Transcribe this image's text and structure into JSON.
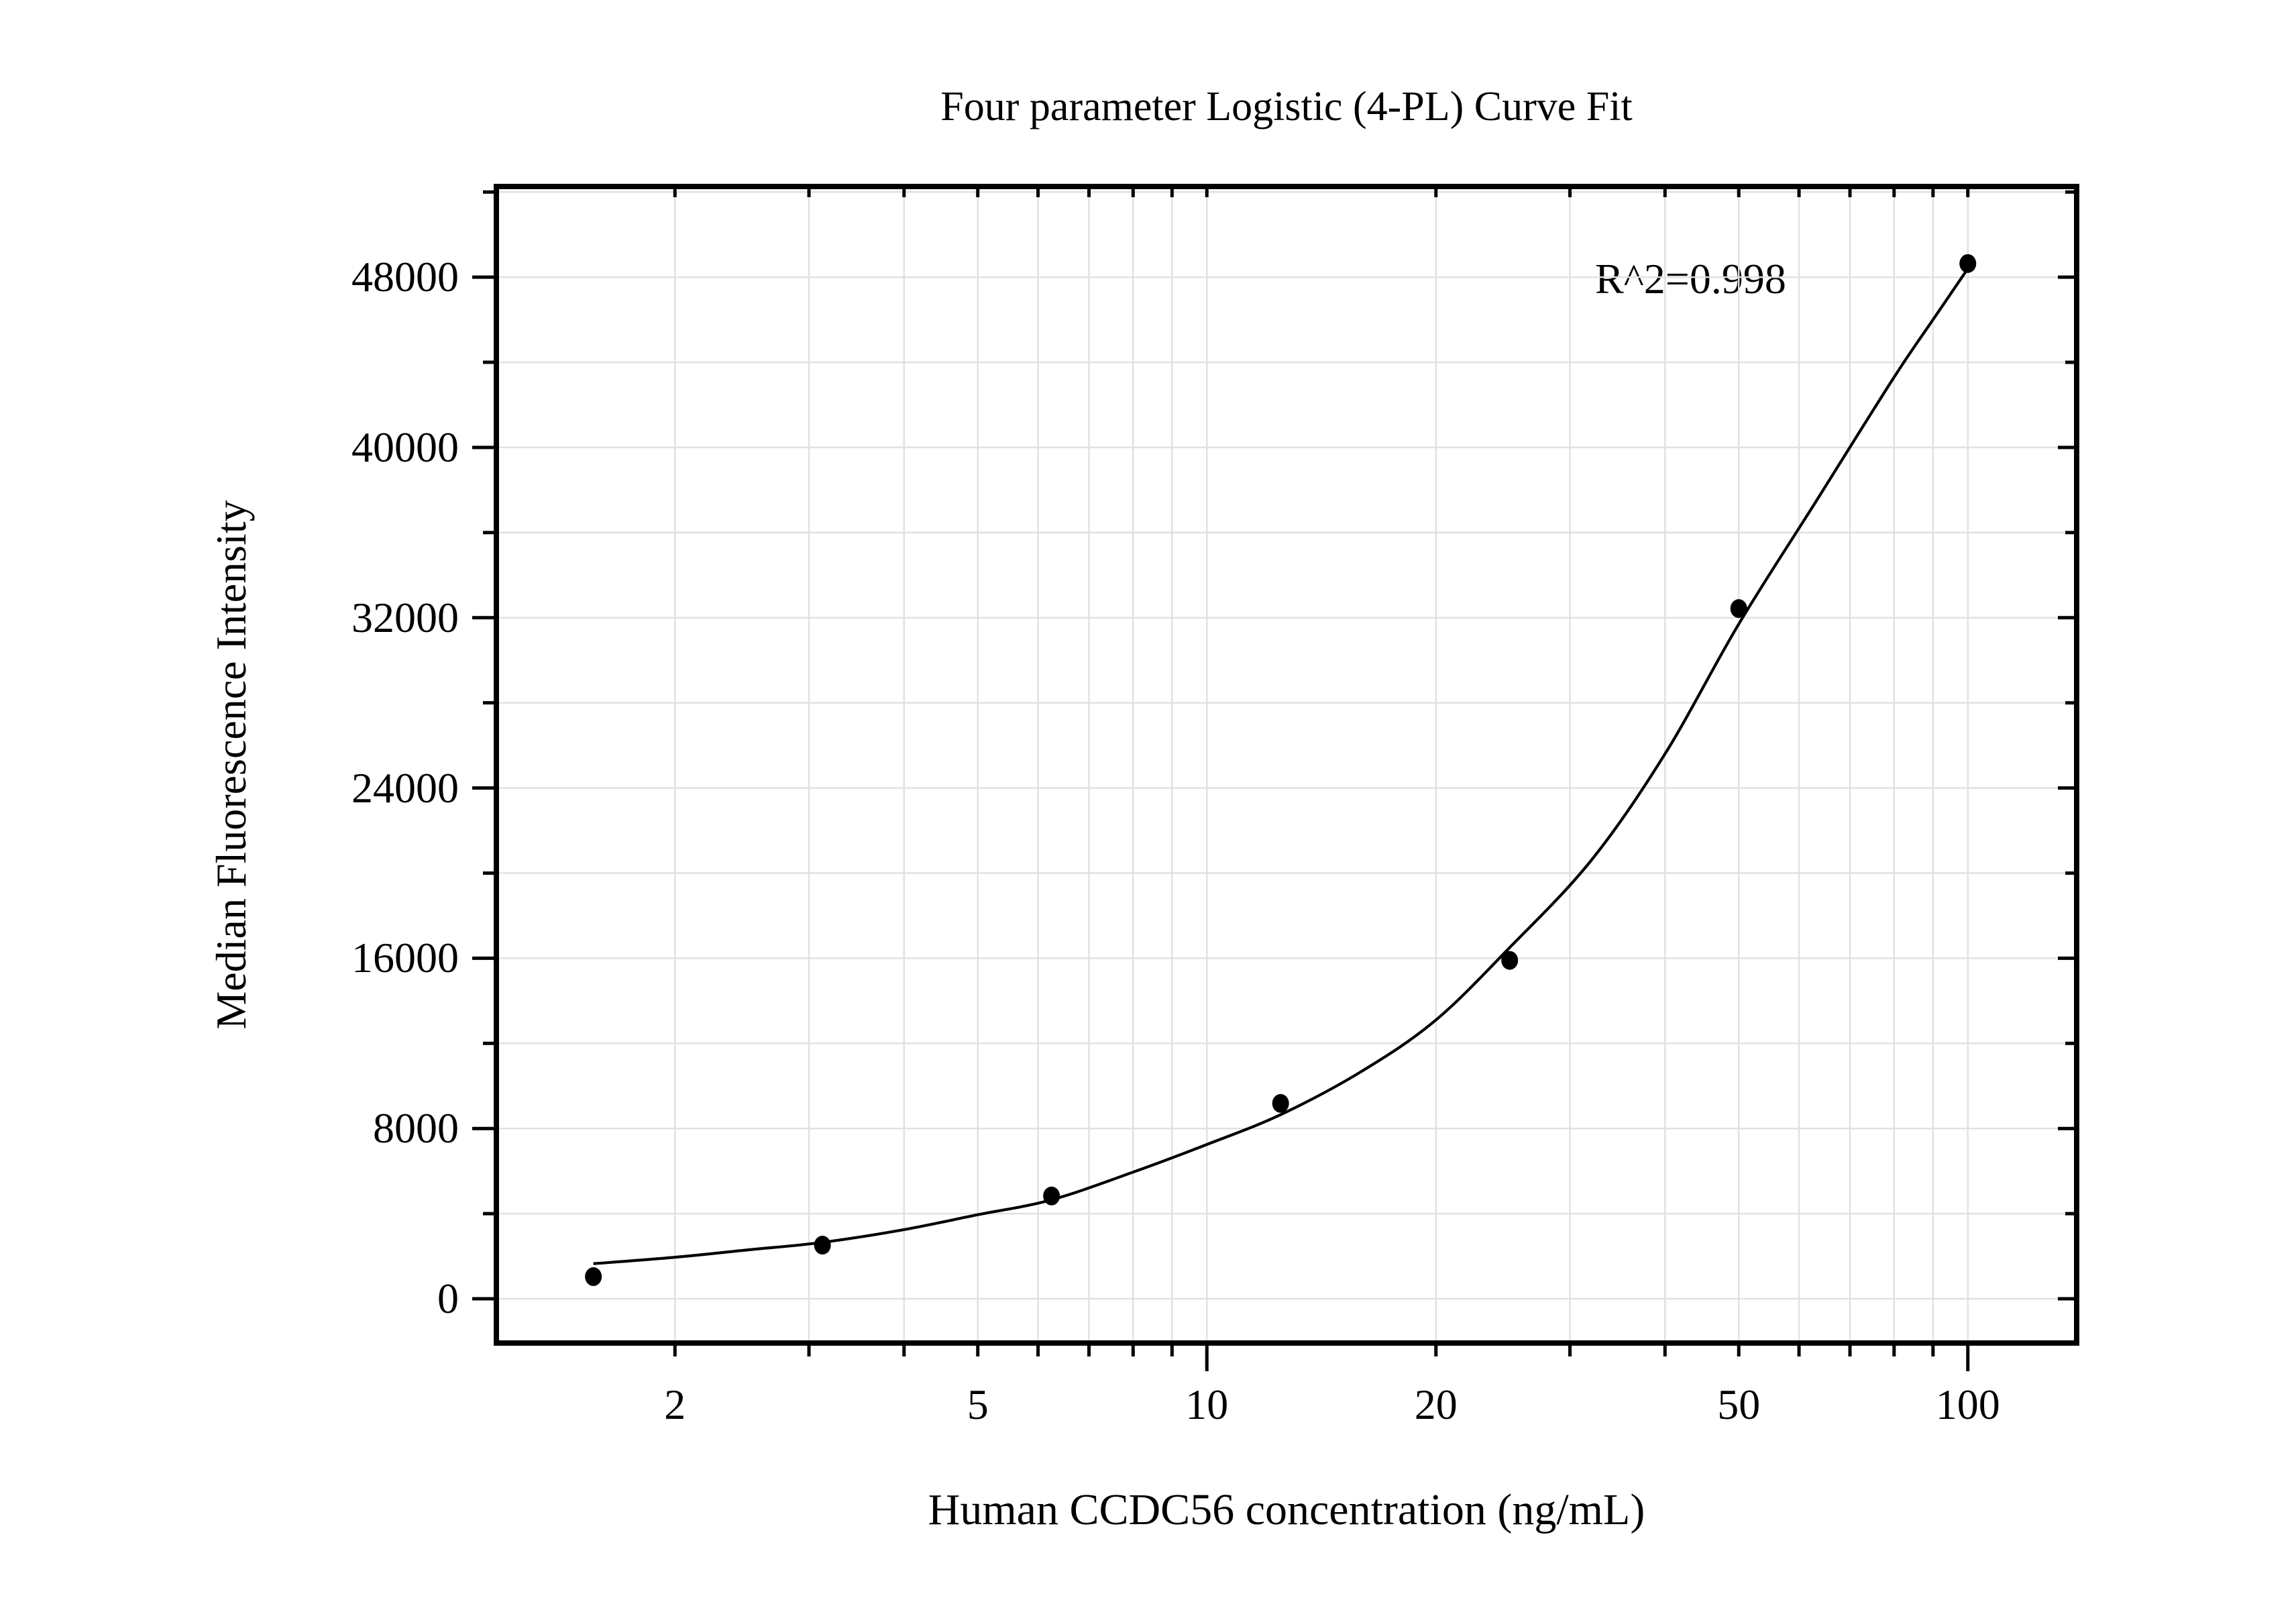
{
  "title": "Four parameter Logistic (4-PL) Curve Fit",
  "annotation": "R^2=0.998",
  "chart_data": {
    "type": "scatter",
    "title": "Four parameter Logistic (4-PL) Curve Fit",
    "xlabel": "Human CCDC56 concentration (ng/mL)",
    "ylabel": "Median Fluorescence Intensity",
    "annotation": "R^2=0.998",
    "x_scale": "log",
    "y_scale": "linear",
    "x_range": [
      1.165,
      139
    ],
    "y_range": [
      -2080,
      52260
    ],
    "grid": true,
    "grid_color": "#e0e0e0",
    "axis_color": "#000000",
    "marker_color": "#000000",
    "curve_color": "#000000",
    "background": "#ffffff",
    "y_major_tick_step": 8000,
    "y_minor_tick_step": 4000,
    "y_tick_labels": [
      {
        "value": 0,
        "label": "0"
      },
      {
        "value": 8000,
        "label": "8000"
      },
      {
        "value": 16000,
        "label": "16000"
      },
      {
        "value": 24000,
        "label": "24000"
      },
      {
        "value": 32000,
        "label": "32000"
      },
      {
        "value": 40000,
        "label": "40000"
      },
      {
        "value": 48000,
        "label": "48000"
      }
    ],
    "x_tick_labels": [
      {
        "value": 2,
        "label": "2"
      },
      {
        "value": 5,
        "label": "5"
      },
      {
        "value": 10,
        "label": "10"
      },
      {
        "value": 20,
        "label": "20"
      },
      {
        "value": 50,
        "label": "50"
      },
      {
        "value": 100,
        "label": "100"
      }
    ],
    "x_minor_ticks": [
      2,
      3,
      4,
      5,
      6,
      7,
      8,
      9,
      20,
      30,
      40,
      50,
      60,
      70,
      80,
      90
    ],
    "x_major_ticks": [
      10,
      100
    ],
    "series": [
      {
        "name": "Standard curve data points",
        "points": [
          {
            "x": 1.5625,
            "y": 1040
          },
          {
            "x": 3.125,
            "y": 2520
          },
          {
            "x": 6.25,
            "y": 4830
          },
          {
            "x": 12.5,
            "y": 9180
          },
          {
            "x": 25,
            "y": 15900
          },
          {
            "x": 50,
            "y": 32430
          },
          {
            "x": 100,
            "y": 48640
          }
        ]
      }
    ],
    "fit_curve_points": [
      {
        "x": 1.5625,
        "y": 1650
      },
      {
        "x": 2,
        "y": 1950
      },
      {
        "x": 2.5,
        "y": 2300
      },
      {
        "x": 3.125,
        "y": 2650
      },
      {
        "x": 4,
        "y": 3250
      },
      {
        "x": 5,
        "y": 3950
      },
      {
        "x": 6.25,
        "y": 4650
      },
      {
        "x": 8,
        "y": 5950
      },
      {
        "x": 10,
        "y": 7250
      },
      {
        "x": 12.5,
        "y": 8650
      },
      {
        "x": 16,
        "y": 10700
      },
      {
        "x": 20,
        "y": 13100
      },
      {
        "x": 25,
        "y": 16500
      },
      {
        "x": 32,
        "y": 20600
      },
      {
        "x": 40,
        "y": 25600
      },
      {
        "x": 50,
        "y": 31700
      },
      {
        "x": 63,
        "y": 37400
      },
      {
        "x": 80,
        "y": 43300
      },
      {
        "x": 90,
        "y": 46000
      },
      {
        "x": 100,
        "y": 48400
      }
    ]
  }
}
